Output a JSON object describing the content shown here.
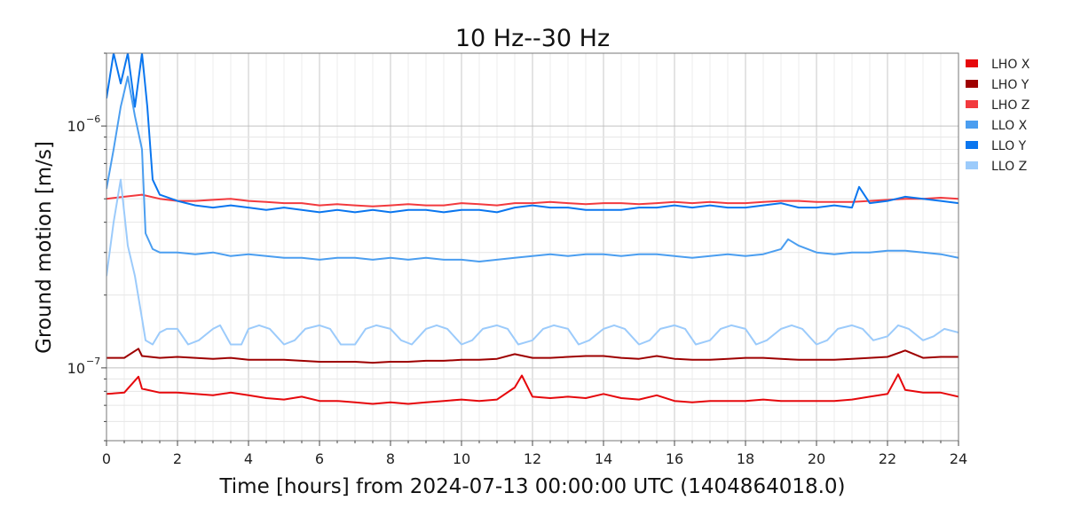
{
  "chart_data": {
    "type": "line",
    "title": "10 Hz--30 Hz",
    "xlabel": "Time [hours] from 2024-07-13 00:00:00 UTC (1404864018.0)",
    "ylabel": "Ground motion [m/s]",
    "xlim": [
      0,
      24
    ],
    "ylim": [
      5e-08,
      2e-06
    ],
    "yscale": "log",
    "grid": true,
    "legend_position": "right",
    "x_ticks": [
      0,
      2,
      4,
      6,
      8,
      10,
      12,
      14,
      16,
      18,
      20,
      22,
      24
    ],
    "x_tick_labels": [
      "0",
      "2",
      "4",
      "6",
      "8",
      "10",
      "12",
      "14",
      "16",
      "18",
      "20",
      "22",
      "24"
    ],
    "y_ticks": [
      1e-07,
      1e-06
    ],
    "y_tick_labels": [
      {
        "base": "10",
        "exp": "−7"
      },
      {
        "base": "10",
        "exp": "−6"
      }
    ],
    "series": [
      {
        "name": "LHO X",
        "color": "#e6080c",
        "x": [
          0,
          0.5,
          0.9,
          1.0,
          1.5,
          2,
          2.5,
          3,
          3.5,
          4,
          4.5,
          5,
          5.5,
          6,
          6.5,
          7,
          7.5,
          8,
          8.5,
          9,
          9.5,
          10,
          10.5,
          11,
          11.5,
          11.7,
          12,
          12.5,
          13,
          13.5,
          14,
          14.5,
          15,
          15.5,
          16,
          16.5,
          17,
          17.5,
          18,
          18.5,
          19,
          19.5,
          20,
          20.5,
          21,
          21.5,
          22,
          22.3,
          22.5,
          23,
          23.5,
          24
        ],
        "y": [
          7.8e-08,
          7.9e-08,
          9.2e-08,
          8.2e-08,
          7.9e-08,
          7.9e-08,
          7.8e-08,
          7.7e-08,
          7.9e-08,
          7.7e-08,
          7.5e-08,
          7.4e-08,
          7.6e-08,
          7.3e-08,
          7.3e-08,
          7.2e-08,
          7.1e-08,
          7.2e-08,
          7.1e-08,
          7.2e-08,
          7.3e-08,
          7.4e-08,
          7.3e-08,
          7.4e-08,
          8.3e-08,
          9.3e-08,
          7.6e-08,
          7.5e-08,
          7.6e-08,
          7.5e-08,
          7.8e-08,
          7.5e-08,
          7.4e-08,
          7.7e-08,
          7.3e-08,
          7.2e-08,
          7.3e-08,
          7.3e-08,
          7.3e-08,
          7.4e-08,
          7.3e-08,
          7.3e-08,
          7.3e-08,
          7.3e-08,
          7.4e-08,
          7.6e-08,
          7.8e-08,
          9.4e-08,
          8.1e-08,
          7.9e-08,
          7.9e-08,
          7.6e-08
        ]
      },
      {
        "name": "LHO Y",
        "color": "#9e0000",
        "x": [
          0,
          0.5,
          0.9,
          1.0,
          1.5,
          2,
          2.5,
          3,
          3.5,
          4,
          4.5,
          5,
          5.5,
          6,
          6.5,
          7,
          7.5,
          8,
          8.5,
          9,
          9.5,
          10,
          10.5,
          11,
          11.5,
          12,
          12.5,
          13,
          13.5,
          14,
          14.5,
          15,
          15.5,
          16,
          16.5,
          17,
          17.5,
          18,
          18.5,
          19,
          19.5,
          20,
          20.5,
          21,
          21.5,
          22,
          22.5,
          23,
          23.5,
          24
        ],
        "y": [
          1.1e-07,
          1.1e-07,
          1.2e-07,
          1.12e-07,
          1.1e-07,
          1.11e-07,
          1.1e-07,
          1.09e-07,
          1.1e-07,
          1.08e-07,
          1.08e-07,
          1.08e-07,
          1.07e-07,
          1.06e-07,
          1.06e-07,
          1.06e-07,
          1.05e-07,
          1.06e-07,
          1.06e-07,
          1.07e-07,
          1.07e-07,
          1.08e-07,
          1.08e-07,
          1.09e-07,
          1.14e-07,
          1.1e-07,
          1.1e-07,
          1.11e-07,
          1.12e-07,
          1.12e-07,
          1.1e-07,
          1.09e-07,
          1.12e-07,
          1.09e-07,
          1.08e-07,
          1.08e-07,
          1.09e-07,
          1.1e-07,
          1.1e-07,
          1.09e-07,
          1.08e-07,
          1.08e-07,
          1.08e-07,
          1.09e-07,
          1.1e-07,
          1.11e-07,
          1.18e-07,
          1.1e-07,
          1.11e-07,
          1.11e-07
        ]
      },
      {
        "name": "LHO Z",
        "color": "#f23a3e",
        "x": [
          0,
          0.5,
          1,
          1.5,
          2,
          2.5,
          3,
          3.5,
          4,
          4.5,
          5,
          5.5,
          6,
          6.5,
          7,
          7.5,
          8,
          8.5,
          9,
          9.5,
          10,
          10.5,
          11,
          11.5,
          12,
          12.5,
          13,
          13.5,
          14,
          14.5,
          15,
          15.5,
          16,
          16.5,
          17,
          17.5,
          18,
          18.5,
          19,
          19.5,
          20,
          20.5,
          21,
          21.5,
          22,
          22.5,
          23,
          23.5,
          24
        ],
        "y": [
          5e-07,
          5.1e-07,
          5.2e-07,
          5e-07,
          4.9e-07,
          4.9e-07,
          4.95e-07,
          5e-07,
          4.9e-07,
          4.85e-07,
          4.8e-07,
          4.8e-07,
          4.7e-07,
          4.75e-07,
          4.7e-07,
          4.65e-07,
          4.7e-07,
          4.75e-07,
          4.7e-07,
          4.7e-07,
          4.8e-07,
          4.75e-07,
          4.7e-07,
          4.8e-07,
          4.8e-07,
          4.85e-07,
          4.8e-07,
          4.75e-07,
          4.8e-07,
          4.8e-07,
          4.75e-07,
          4.8e-07,
          4.85e-07,
          4.8e-07,
          4.85e-07,
          4.8e-07,
          4.8e-07,
          4.85e-07,
          4.9e-07,
          4.9e-07,
          4.85e-07,
          4.85e-07,
          4.85e-07,
          4.9e-07,
          4.95e-07,
          5e-07,
          5e-07,
          5.05e-07,
          5e-07
        ]
      },
      {
        "name": "LLO X",
        "color": "#4b9ef0",
        "x": [
          0,
          0.2,
          0.4,
          0.6,
          0.8,
          1.0,
          1.1,
          1.3,
          1.5,
          2,
          2.5,
          3,
          3.5,
          4,
          4.5,
          5,
          5.5,
          6,
          6.5,
          7,
          7.5,
          8,
          8.5,
          9,
          9.5,
          10,
          10.5,
          11,
          11.5,
          12,
          12.5,
          13,
          13.5,
          14,
          14.5,
          15,
          15.5,
          16,
          16.5,
          17,
          17.5,
          18,
          18.5,
          19,
          19.2,
          19.5,
          20,
          20.5,
          21,
          21.5,
          22,
          22.5,
          23,
          23.5,
          24
        ],
        "y": [
          5.5e-07,
          8e-07,
          1.2e-06,
          1.6e-06,
          1.1e-06,
          8e-07,
          3.6e-07,
          3.1e-07,
          3e-07,
          3e-07,
          2.95e-07,
          3e-07,
          2.9e-07,
          2.95e-07,
          2.9e-07,
          2.85e-07,
          2.85e-07,
          2.8e-07,
          2.85e-07,
          2.85e-07,
          2.8e-07,
          2.85e-07,
          2.8e-07,
          2.85e-07,
          2.8e-07,
          2.8e-07,
          2.75e-07,
          2.8e-07,
          2.85e-07,
          2.9e-07,
          2.95e-07,
          2.9e-07,
          2.95e-07,
          2.95e-07,
          2.9e-07,
          2.95e-07,
          2.95e-07,
          2.9e-07,
          2.85e-07,
          2.9e-07,
          2.95e-07,
          2.9e-07,
          2.95e-07,
          3.1e-07,
          3.4e-07,
          3.2e-07,
          3e-07,
          2.95e-07,
          3e-07,
          3e-07,
          3.05e-07,
          3.05e-07,
          3e-07,
          2.95e-07,
          2.85e-07
        ]
      },
      {
        "name": "LLO Y",
        "color": "#0a76ef",
        "x": [
          0,
          0.2,
          0.4,
          0.6,
          0.8,
          1.0,
          1.15,
          1.3,
          1.5,
          2,
          2.5,
          3,
          3.5,
          4,
          4.5,
          5,
          5.5,
          6,
          6.5,
          7,
          7.5,
          8,
          8.5,
          9,
          9.5,
          10,
          10.5,
          11,
          11.5,
          12,
          12.5,
          13,
          13.5,
          14,
          14.5,
          15,
          15.5,
          16,
          16.5,
          17,
          17.5,
          18,
          18.5,
          19,
          19.5,
          20,
          20.5,
          21,
          21.2,
          21.5,
          22,
          22.5,
          23,
          23.5,
          24
        ],
        "y": [
          1.3e-06,
          2e-06,
          1.5e-06,
          2e-06,
          1.2e-06,
          2e-06,
          1.2e-06,
          6e-07,
          5.2e-07,
          4.9e-07,
          4.7e-07,
          4.6e-07,
          4.7e-07,
          4.6e-07,
          4.5e-07,
          4.6e-07,
          4.5e-07,
          4.4e-07,
          4.5e-07,
          4.4e-07,
          4.5e-07,
          4.4e-07,
          4.5e-07,
          4.5e-07,
          4.4e-07,
          4.5e-07,
          4.5e-07,
          4.4e-07,
          4.6e-07,
          4.7e-07,
          4.6e-07,
          4.6e-07,
          4.5e-07,
          4.5e-07,
          4.5e-07,
          4.6e-07,
          4.6e-07,
          4.7e-07,
          4.6e-07,
          4.7e-07,
          4.6e-07,
          4.6e-07,
          4.7e-07,
          4.8e-07,
          4.6e-07,
          4.6e-07,
          4.7e-07,
          4.6e-07,
          5.6e-07,
          4.8e-07,
          4.9e-07,
          5.1e-07,
          5e-07,
          4.9e-07,
          4.8e-07
        ]
      },
      {
        "name": "LLO Z",
        "color": "#9ccbfb",
        "x": [
          0,
          0.2,
          0.4,
          0.6,
          0.8,
          1.0,
          1.1,
          1.3,
          1.5,
          1.7,
          2.0,
          2.3,
          2.6,
          3.0,
          3.2,
          3.5,
          3.8,
          4.0,
          4.3,
          4.6,
          5.0,
          5.3,
          5.6,
          6.0,
          6.3,
          6.6,
          7.0,
          7.3,
          7.6,
          8.0,
          8.3,
          8.6,
          9.0,
          9.3,
          9.6,
          10.0,
          10.3,
          10.6,
          11.0,
          11.3,
          11.6,
          12.0,
          12.3,
          12.6,
          13.0,
          13.3,
          13.6,
          14.0,
          14.3,
          14.6,
          15.0,
          15.3,
          15.6,
          16.0,
          16.3,
          16.6,
          17.0,
          17.3,
          17.6,
          18.0,
          18.3,
          18.6,
          19.0,
          19.3,
          19.6,
          20.0,
          20.3,
          20.6,
          21.0,
          21.3,
          21.6,
          22.0,
          22.3,
          22.6,
          23.0,
          23.3,
          23.6,
          24.0
        ],
        "y": [
          2.4e-07,
          4e-07,
          6e-07,
          3.2e-07,
          2.4e-07,
          1.6e-07,
          1.3e-07,
          1.25e-07,
          1.4e-07,
          1.45e-07,
          1.45e-07,
          1.25e-07,
          1.3e-07,
          1.45e-07,
          1.5e-07,
          1.25e-07,
          1.25e-07,
          1.45e-07,
          1.5e-07,
          1.45e-07,
          1.25e-07,
          1.3e-07,
          1.45e-07,
          1.5e-07,
          1.45e-07,
          1.25e-07,
          1.25e-07,
          1.45e-07,
          1.5e-07,
          1.45e-07,
          1.3e-07,
          1.25e-07,
          1.45e-07,
          1.5e-07,
          1.45e-07,
          1.25e-07,
          1.3e-07,
          1.45e-07,
          1.5e-07,
          1.45e-07,
          1.25e-07,
          1.3e-07,
          1.45e-07,
          1.5e-07,
          1.45e-07,
          1.25e-07,
          1.3e-07,
          1.45e-07,
          1.5e-07,
          1.45e-07,
          1.25e-07,
          1.3e-07,
          1.45e-07,
          1.5e-07,
          1.45e-07,
          1.25e-07,
          1.3e-07,
          1.45e-07,
          1.5e-07,
          1.45e-07,
          1.25e-07,
          1.3e-07,
          1.45e-07,
          1.5e-07,
          1.45e-07,
          1.25e-07,
          1.3e-07,
          1.45e-07,
          1.5e-07,
          1.45e-07,
          1.3e-07,
          1.35e-07,
          1.5e-07,
          1.45e-07,
          1.3e-07,
          1.35e-07,
          1.45e-07,
          1.4e-07
        ]
      }
    ]
  }
}
